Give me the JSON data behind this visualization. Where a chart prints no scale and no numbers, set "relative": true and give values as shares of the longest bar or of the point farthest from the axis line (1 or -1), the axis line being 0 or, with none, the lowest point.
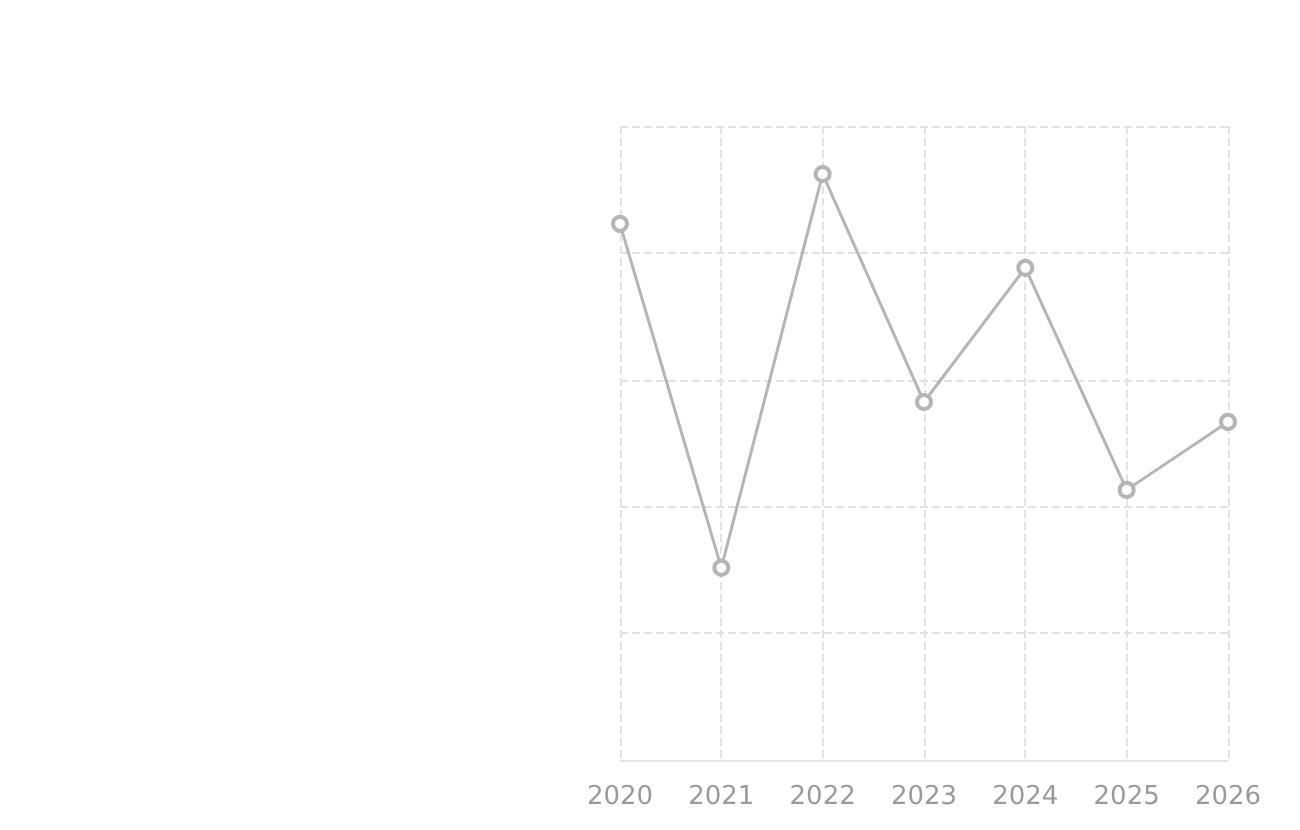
{
  "chart_data": {
    "type": "line",
    "relative": true,
    "categories": [
      "2020",
      "2021",
      "2022",
      "2023",
      "2024",
      "2025",
      "2026"
    ],
    "series": [
      {
        "color": "#b5b5b5",
        "values": [
          0.915,
          0.328,
          1,
          0.611,
          0.84,
          0.461,
          0.577
        ]
      }
    ],
    "grid": true,
    "marker": "circle",
    "line_style": "solid"
  }
}
